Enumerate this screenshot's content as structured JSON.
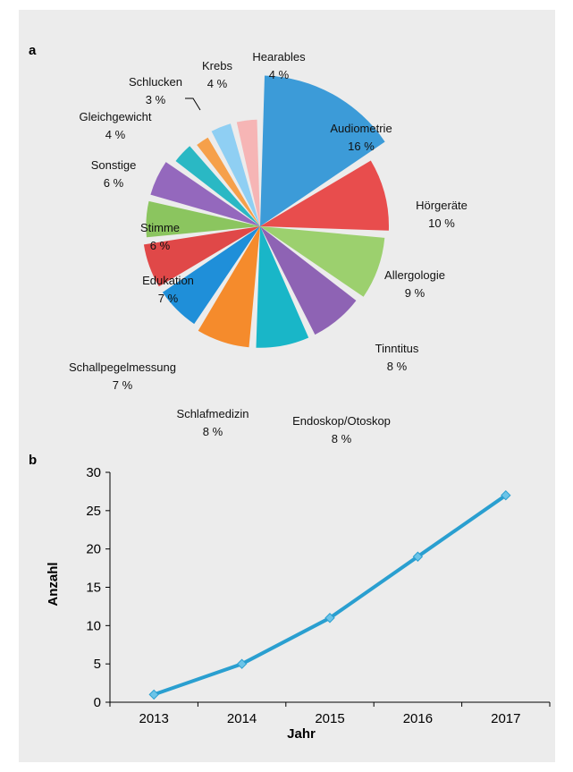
{
  "panel_a": {
    "label": "a"
  },
  "panel_b": {
    "label": "b"
  },
  "colors": {
    "line": "#2a9fd0",
    "axis": "#000000",
    "background": "#ececec"
  },
  "chart_data": [
    {
      "type": "pie",
      "slices": [
        {
          "name": "Audiometrie",
          "percent_label": "16 %",
          "value": 16,
          "color": "#3c9bd8"
        },
        {
          "name": "Hörgeräte",
          "percent_label": "10 %",
          "value": 10,
          "color": "#e84d4d"
        },
        {
          "name": "Allergologie",
          "percent_label": "9 %",
          "value": 9,
          "color": "#9cd06e"
        },
        {
          "name": "Tinntitus",
          "percent_label": "8 %",
          "value": 8,
          "color": "#8e63b4"
        },
        {
          "name": "Endoskop/Otoskop",
          "percent_label": "8 %",
          "value": 8,
          "color": "#19b6c8"
        },
        {
          "name": "Schlafmedizin",
          "percent_label": "8 %",
          "value": 8,
          "color": "#f58b2c"
        },
        {
          "name": "Schallpegelmessung",
          "percent_label": "7 %",
          "value": 7,
          "color": "#1f8fd9"
        },
        {
          "name": "Edukation",
          "percent_label": "7 %",
          "value": 7,
          "color": "#e04848"
        },
        {
          "name": "Stimme",
          "percent_label": "6 %",
          "value": 6,
          "color": "#8bc55f"
        },
        {
          "name": "Sonstige",
          "percent_label": "6 %",
          "value": 6,
          "color": "#9468bd"
        },
        {
          "name": "Gleichgewicht",
          "percent_label": "4 %",
          "value": 4,
          "color": "#2ab8c4"
        },
        {
          "name": "Schlucken",
          "percent_label": "3 %",
          "value": 3,
          "color": "#f6a04a"
        },
        {
          "name": "Krebs",
          "percent_label": "4 %",
          "value": 4,
          "color": "#8fcff3"
        },
        {
          "name": "Hearables",
          "percent_label": "4 %",
          "value": 4,
          "color": "#f6b5b5"
        }
      ]
    },
    {
      "type": "line",
      "x": [
        "2013",
        "2014",
        "2015",
        "2016",
        "2017"
      ],
      "series": [
        {
          "values": [
            1,
            5,
            11,
            19,
            27
          ],
          "color": "#2a9fd0"
        }
      ],
      "xlabel": "Jahr",
      "ylabel": "Anzahl",
      "ylim": [
        0,
        30
      ],
      "yticks": [
        0,
        5,
        10,
        15,
        20,
        25,
        30
      ],
      "grid": false
    }
  ]
}
